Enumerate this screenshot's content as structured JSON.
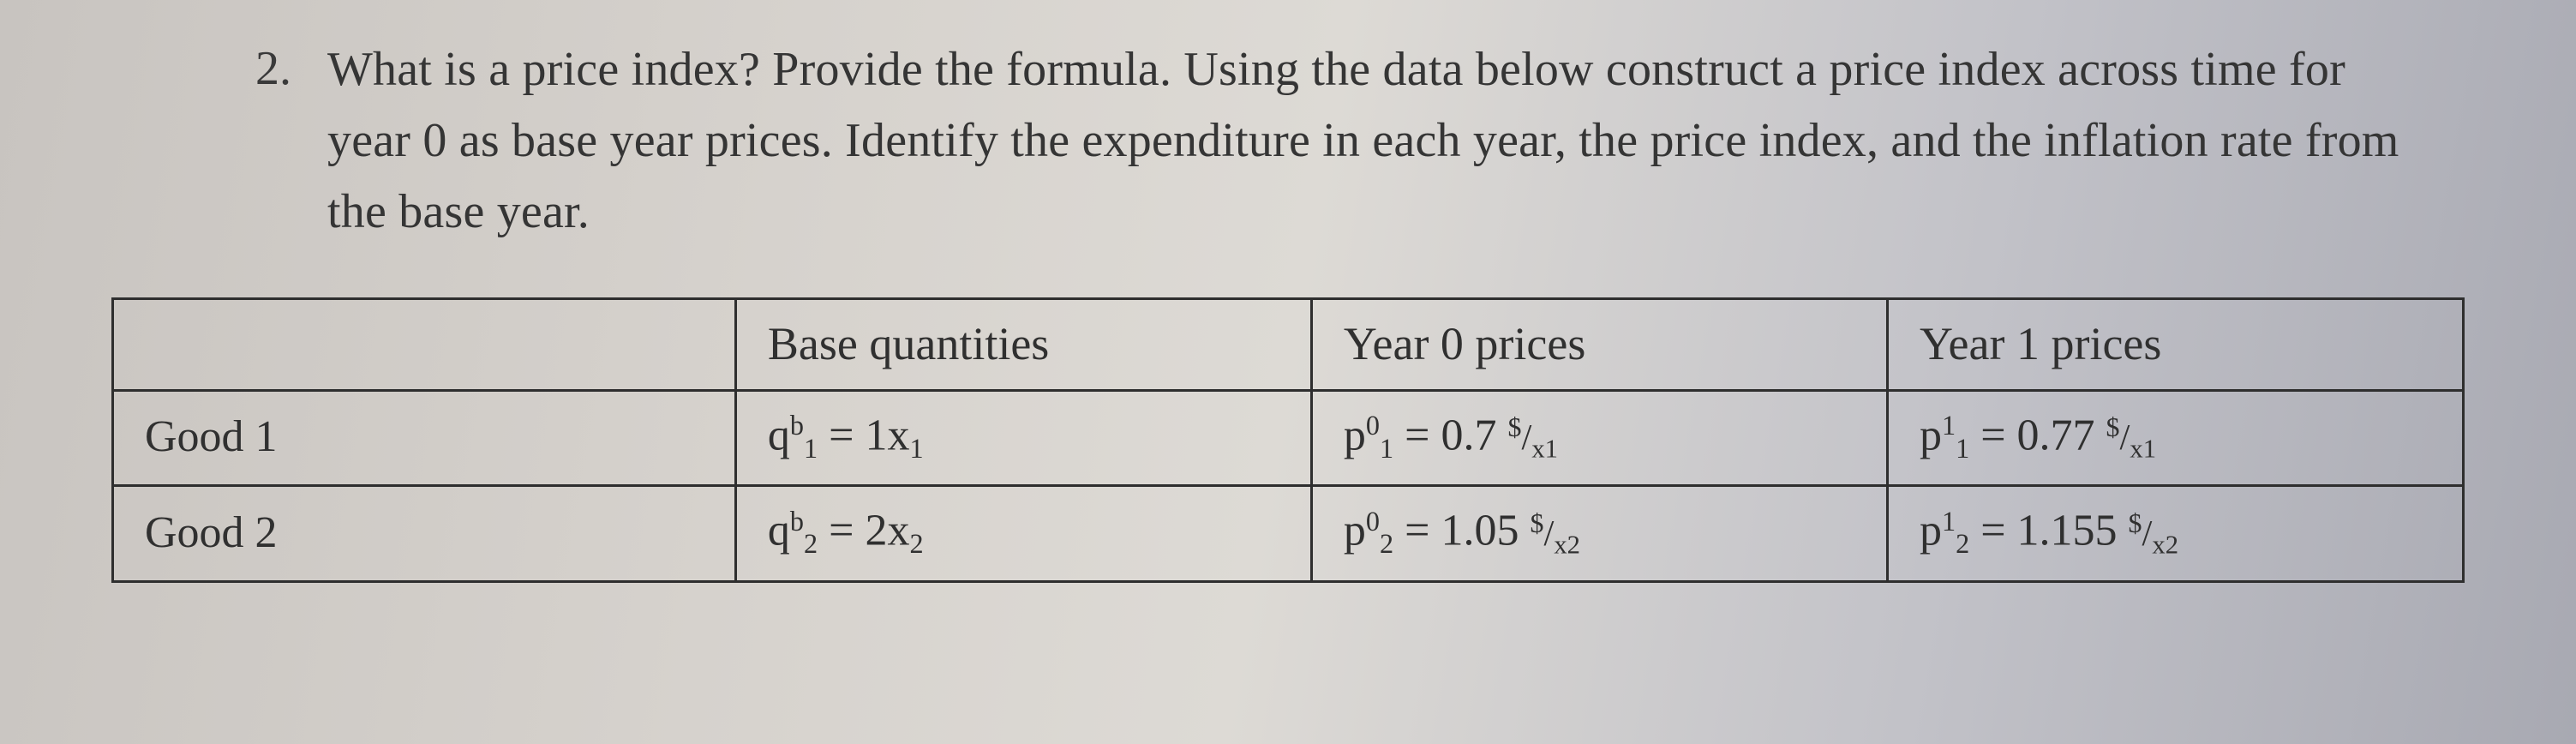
{
  "question": {
    "number": "2.",
    "text": "What is a price index? Provide the formula. Using the data below construct a price index across time for year 0 as base year prices. Identify the expenditure in each year, the price index, and the inflation rate from the base year."
  },
  "table": {
    "headers": {
      "c0": "",
      "c1": "Base quantities",
      "c2": "Year 0 prices",
      "c3": "Year 1 prices"
    },
    "rows": [
      {
        "label": "Good 1",
        "qty": {
          "var": "q",
          "sup": "b",
          "sub": "1",
          "eq": " = ",
          "val": "1x",
          "valsub": "1"
        },
        "p0": {
          "var": "p",
          "sup": "0",
          "sub": "1",
          "eq": " = ",
          "val": "0.7 ",
          "unit_top": "$",
          "unit_bot": "x1"
        },
        "p1": {
          "var": "p",
          "sup": "1",
          "sub": "1",
          "eq": " = ",
          "val": "0.77 ",
          "unit_top": "$",
          "unit_bot": "x1"
        }
      },
      {
        "label": "Good 2",
        "qty": {
          "var": "q",
          "sup": "b",
          "sub": "2",
          "eq": " = ",
          "val": "2x",
          "valsub": "2"
        },
        "p0": {
          "var": "p",
          "sup": "0",
          "sub": "2",
          "eq": " = ",
          "val": "1.05 ",
          "unit_top": "$",
          "unit_bot": "x2"
        },
        "p1": {
          "var": "p",
          "sup": "1",
          "sub": "2",
          "eq": " = ",
          "val": "1.155 ",
          "unit_top": "$",
          "unit_bot": "x2"
        }
      }
    ],
    "border_color": "#2e2e2e",
    "column_widths_pct": [
      26.5,
      24.5,
      24.5,
      24.5
    ],
    "cell_fontsize_pt": 39,
    "header_fontsize_pt": 40
  },
  "style": {
    "background_gradient": [
      "#c8c4c0",
      "#d6d2cd",
      "#dddad5",
      "#c2c2c8",
      "#a8a9b2"
    ],
    "text_color": "#2b2b2b",
    "body_fontsize_pt": 42,
    "font_family": "Garamond / Times-style serif"
  }
}
